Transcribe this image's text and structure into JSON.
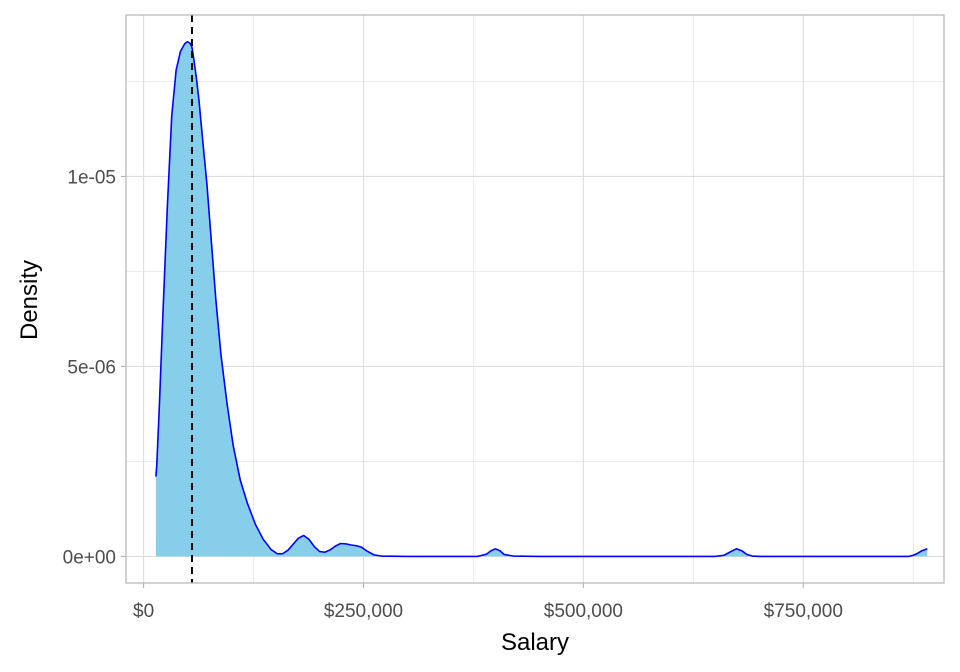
{
  "chart_data": {
    "type": "area",
    "xlabel": "Salary",
    "ylabel": "Density",
    "xlim": [
      -20000,
      910000
    ],
    "ylim": [
      -7e-07,
      1.425e-05
    ],
    "x_ticks": [
      {
        "value": 0,
        "label": "$0"
      },
      {
        "value": 250000,
        "label": "$250,000"
      },
      {
        "value": 500000,
        "label": "$500,000"
      },
      {
        "value": 750000,
        "label": "$750,000"
      }
    ],
    "x_minor_ticks": [
      125000,
      375000,
      625000,
      875000
    ],
    "y_ticks": [
      {
        "value": 0,
        "label": "0e+00"
      },
      {
        "value": 5e-06,
        "label": "5e-06"
      },
      {
        "value": 1e-05,
        "label": "1e-05"
      }
    ],
    "y_minor_ticks": [
      2.5e-06,
      7.5e-06,
      1.25e-05
    ],
    "grid": true,
    "reference_line": {
      "x": 55000,
      "style": "dashed",
      "color": "#000000"
    },
    "colors": {
      "fill": "#87ceeb",
      "line": "#0000ff",
      "grid": "#dedede",
      "border": "#b3b3b3"
    },
    "series": [
      {
        "x": [
          14000,
          15000,
          18000,
          22000,
          27000,
          32000,
          37000,
          42000,
          47000,
          50000,
          53000,
          55000,
          57000,
          60000,
          63000,
          67000,
          72000,
          77000,
          82000,
          88000,
          95000,
          102000,
          110000,
          118000,
          127000,
          136000,
          145000,
          152000,
          158000,
          164000,
          170000,
          176000,
          182000,
          188000,
          194000,
          200000,
          206000,
          212000,
          218000,
          224000,
          230000,
          236000,
          242000,
          248000,
          254000,
          262000,
          270000,
          300000,
          350000,
          380000,
          390000,
          395000,
          400000,
          405000,
          410000,
          420000,
          450000,
          550000,
          650000,
          660000,
          668000,
          674000,
          680000,
          686000,
          692000,
          700000,
          750000,
          800000,
          850000,
          870000,
          875000,
          880000,
          885000,
          891000
        ],
        "y": [
          2.1e-06,
          2.4e-06,
          4e-06,
          6.4e-06,
          9.2e-06,
          1.16e-05,
          1.28e-05,
          1.33e-05,
          1.35e-05,
          1.355e-05,
          1.35e-05,
          1.34e-05,
          1.31e-05,
          1.26e-05,
          1.2e-05,
          1.1e-05,
          9.8e-06,
          8.3e-06,
          6.8e-06,
          5.3e-06,
          4e-06,
          2.9e-06,
          2e-06,
          1.4e-06,
          8.5e-07,
          4.5e-07,
          1.8e-07,
          7e-08,
          7e-08,
          1.6e-07,
          3.2e-07,
          4.8e-07,
          5.5e-07,
          4.5e-07,
          2.6e-07,
          1.3e-07,
          1.1e-07,
          1.7e-07,
          2.7e-07,
          3.4e-07,
          3.3e-07,
          3e-07,
          2.8e-07,
          2.4e-07,
          1.4e-07,
          4e-08,
          1e-08,
          0.0,
          0.0,
          0.0,
          6e-08,
          1.5e-07,
          2e-07,
          1.5e-07,
          5e-08,
          1e-08,
          0.0,
          0.0,
          0.0,
          3e-08,
          1.3e-07,
          2e-07,
          1.5e-07,
          5e-08,
          1e-08,
          0.0,
          0.0,
          0.0,
          0.0,
          0.0,
          3e-08,
          8e-08,
          1.5e-07,
          2e-07
        ]
      }
    ]
  }
}
